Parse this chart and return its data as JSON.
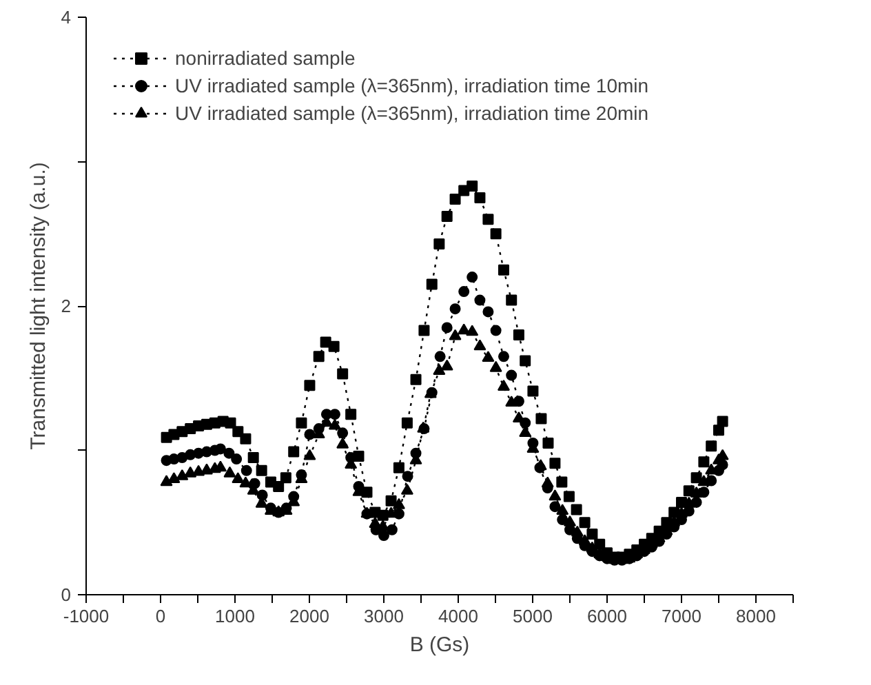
{
  "chart_data": {
    "type": "line",
    "xlabel": "B (Gs)",
    "ylabel": "Transmitted light intensity (a.u.)",
    "xlim": [
      -1000,
      8500
    ],
    "ylim": [
      0,
      4
    ],
    "xticks": [
      -1000,
      {
        "value": -500,
        "label": null
      },
      0,
      {
        "value": 500,
        "label": null
      },
      1000,
      {
        "value": 1500,
        "label": null
      },
      2000,
      {
        "value": 2500,
        "label": null
      },
      3000,
      {
        "value": 3500,
        "label": null
      },
      4000,
      {
        "value": 4500,
        "label": null
      },
      5000,
      {
        "value": 5500,
        "label": null
      },
      6000,
      {
        "value": 6500,
        "label": null
      },
      7000,
      {
        "value": 7500,
        "label": null
      },
      8000,
      {
        "value": 8500,
        "label": null
      }
    ],
    "yticks": [
      0,
      {
        "value": 1,
        "label": null
      },
      2,
      {
        "value": 3,
        "label": null
      },
      4
    ],
    "grid": false,
    "legend": "top left",
    "line_style": "dotted",
    "series": [
      {
        "name": "nonirradiated sample",
        "color": "#000000",
        "marker": "square",
        "x": [
          80,
          180,
          290,
          400,
          510,
          620,
          730,
          840,
          940,
          1040,
          1143,
          1247,
          1358,
          1481,
          1585,
          1684,
          1789,
          1893,
          2004,
          2127,
          2219,
          2330,
          2446,
          2557,
          2662,
          2773,
          2883,
          2988,
          3098,
          3203,
          3314,
          3431,
          3541,
          3646,
          3744,
          3849,
          3959,
          4076,
          4187,
          4291,
          4402,
          4506,
          4611,
          4715,
          4814,
          4900,
          5004,
          5115,
          5208,
          5300,
          5392,
          5490,
          5589,
          5700,
          5800,
          5900,
          6000,
          6100,
          6200,
          6300,
          6400,
          6500,
          6600,
          6700,
          6800,
          6900,
          7000,
          7100,
          7200,
          7300,
          7400,
          7500,
          7552
        ],
        "values": [
          1.09,
          1.11,
          1.13,
          1.15,
          1.17,
          1.18,
          1.19,
          1.2,
          1.19,
          1.13,
          1.08,
          0.95,
          0.86,
          0.78,
          0.75,
          0.81,
          0.99,
          1.19,
          1.45,
          1.65,
          1.75,
          1.72,
          1.53,
          1.25,
          0.96,
          0.71,
          0.57,
          0.55,
          0.65,
          0.88,
          1.19,
          1.49,
          1.83,
          2.15,
          2.43,
          2.62,
          2.74,
          2.8,
          2.83,
          2.75,
          2.6,
          2.5,
          2.25,
          2.04,
          1.8,
          1.62,
          1.41,
          1.22,
          1.05,
          0.91,
          0.78,
          0.68,
          0.59,
          0.5,
          0.42,
          0.35,
          0.29,
          0.26,
          0.26,
          0.28,
          0.31,
          0.35,
          0.39,
          0.44,
          0.5,
          0.57,
          0.64,
          0.72,
          0.81,
          0.92,
          1.03,
          1.14,
          1.2
        ]
      },
      {
        "name": "UV irradiated sample (λ=365nm), irradiation time 10min",
        "color": "#000000",
        "marker": "circle",
        "x": [
          79,
          180,
          290,
          400,
          510,
          620,
          730,
          805,
          920,
          1020,
          1155,
          1265,
          1367,
          1481,
          1585,
          1690,
          1789,
          1893,
          2004,
          2127,
          2231,
          2342,
          2446,
          2557,
          2662,
          2773,
          2895,
          3000,
          3110,
          3203,
          3320,
          3431,
          3541,
          3646,
          3756,
          3849,
          3959,
          4076,
          4187,
          4291,
          4402,
          4506,
          4611,
          4715,
          4814,
          4900,
          5004,
          5097,
          5201,
          5300,
          5400,
          5500,
          5600,
          5700,
          5800,
          5900,
          6000,
          6100,
          6200,
          6300,
          6400,
          6500,
          6600,
          6700,
          6800,
          6900,
          7000,
          7100,
          7200,
          7300,
          7400,
          7500,
          7552
        ],
        "values": [
          0.93,
          0.94,
          0.95,
          0.97,
          0.98,
          0.99,
          1.0,
          1.01,
          0.98,
          0.94,
          0.86,
          0.77,
          0.69,
          0.6,
          0.57,
          0.6,
          0.68,
          0.83,
          1.11,
          1.15,
          1.25,
          1.25,
          1.12,
          0.95,
          0.75,
          0.56,
          0.45,
          0.41,
          0.45,
          0.56,
          0.82,
          0.98,
          1.15,
          1.4,
          1.65,
          1.85,
          1.98,
          2.1,
          2.2,
          2.04,
          1.96,
          1.83,
          1.65,
          1.52,
          1.34,
          1.19,
          1.05,
          0.88,
          0.74,
          0.61,
          0.52,
          0.45,
          0.39,
          0.34,
          0.3,
          0.27,
          0.25,
          0.24,
          0.24,
          0.25,
          0.27,
          0.3,
          0.33,
          0.37,
          0.42,
          0.47,
          0.52,
          0.58,
          0.64,
          0.71,
          0.79,
          0.86,
          0.9
        ]
      },
      {
        "name": "UV irradiated sample (λ=365nm), irradiation time 20min",
        "color": "#000000",
        "marker": "triangle",
        "x": [
          79,
          180,
          290,
          400,
          510,
          620,
          730,
          805,
          930,
          1040,
          1143,
          1247,
          1358,
          1481,
          1585,
          1690,
          1789,
          1893,
          2004,
          2127,
          2231,
          2342,
          2446,
          2557,
          2662,
          2773,
          2883,
          2988,
          3098,
          3203,
          3314,
          3431,
          3530,
          3628,
          3744,
          3849,
          3959,
          4076,
          4187,
          4291,
          4402,
          4506,
          4611,
          4715,
          4814,
          4900,
          5004,
          5108,
          5201,
          5300,
          5400,
          5500,
          5600,
          5700,
          5800,
          5900,
          6000,
          6100,
          6200,
          6300,
          6400,
          6500,
          6600,
          6700,
          6800,
          6900,
          7000,
          7100,
          7200,
          7300,
          7400,
          7500,
          7552
        ],
        "values": [
          0.78,
          0.8,
          0.82,
          0.84,
          0.85,
          0.86,
          0.87,
          0.88,
          0.84,
          0.8,
          0.77,
          0.72,
          0.63,
          0.58,
          0.57,
          0.58,
          0.64,
          0.8,
          0.96,
          1.11,
          1.19,
          1.17,
          1.04,
          0.9,
          0.71,
          0.56,
          0.49,
          0.47,
          0.56,
          0.62,
          0.72,
          0.93,
          1.15,
          1.39,
          1.55,
          1.58,
          1.79,
          1.83,
          1.82,
          1.72,
          1.64,
          1.57,
          1.44,
          1.33,
          1.22,
          1.12,
          1.01,
          0.89,
          0.77,
          0.68,
          0.58,
          0.5,
          0.43,
          0.37,
          0.32,
          0.28,
          0.26,
          0.24,
          0.24,
          0.25,
          0.28,
          0.31,
          0.35,
          0.39,
          0.44,
          0.5,
          0.56,
          0.63,
          0.7,
          0.78,
          0.86,
          0.93,
          0.96
        ]
      }
    ]
  }
}
